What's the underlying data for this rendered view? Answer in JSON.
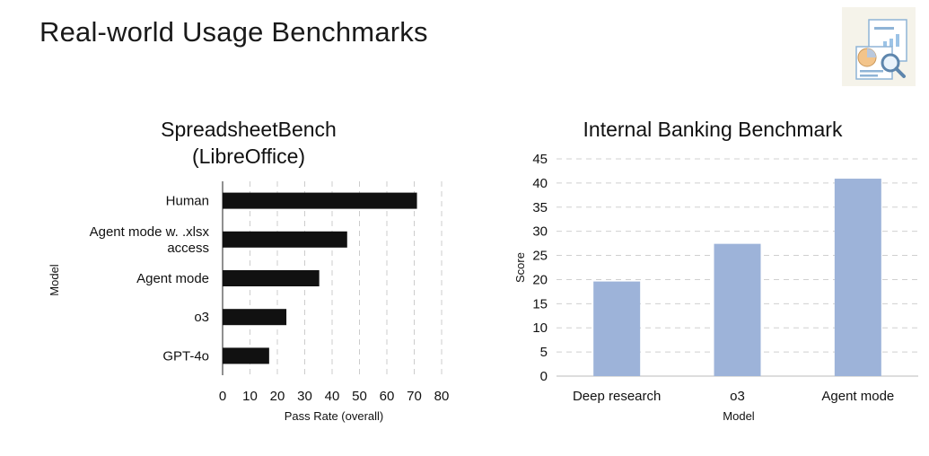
{
  "page": {
    "title": "Real-world Usage Benchmarks"
  },
  "logo": {
    "icon": "report-magnifier-icon"
  },
  "chart_data": [
    {
      "type": "bar",
      "orientation": "horizontal",
      "title": "SpreadsheetBench (LibreOffice)",
      "title_lines": [
        "SpreadsheetBench",
        "(LibreOffice)"
      ],
      "categories": [
        "Human",
        "Agent mode w. .xlsx access",
        "Agent mode",
        "o3",
        "GPT-4o"
      ],
      "category_lines": [
        [
          "Human"
        ],
        [
          "Agent mode w. .xlsx",
          "access"
        ],
        [
          "Agent mode"
        ],
        [
          "o3"
        ],
        [
          "GPT-4o"
        ]
      ],
      "values": [
        71,
        45.5,
        35.3,
        23.3,
        17
      ],
      "xlabel": "Pass Rate (overall)",
      "ylabel": "Model",
      "xlim": [
        0,
        80
      ],
      "xticks": [
        0,
        10,
        20,
        30,
        40,
        50,
        60,
        70,
        80
      ],
      "grid": "vertical dashed",
      "bar_color": "#111111"
    },
    {
      "type": "bar",
      "orientation": "vertical",
      "title": "Internal Banking Benchmark",
      "categories": [
        "Deep research",
        "o3",
        "Agent mode"
      ],
      "values": [
        19.6,
        27.4,
        40.9
      ],
      "xlabel": "Model",
      "ylabel": "Score",
      "ylim": [
        0,
        45
      ],
      "yticks": [
        0,
        5,
        10,
        15,
        20,
        25,
        30,
        35,
        40,
        45
      ],
      "grid": "horizontal dashed",
      "bar_color": "#9db3d9"
    }
  ]
}
